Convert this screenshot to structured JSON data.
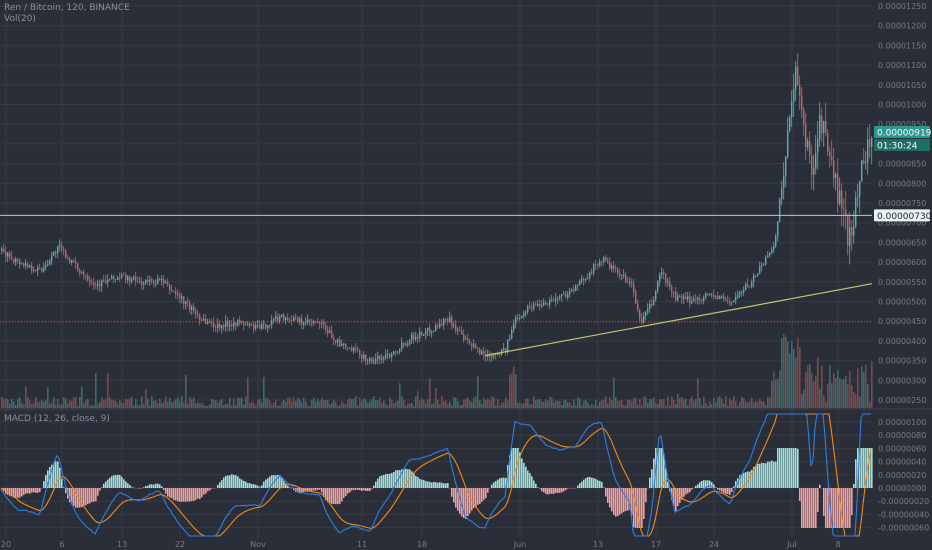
{
  "header": {
    "title": "Ren / Bitcoin, 120, BINANCE",
    "volume_label": "Vol(20)",
    "macd_label": "MACD (12, 26, close, 9)"
  },
  "price_tags": {
    "last_price": "0.00000919",
    "countdown": "01:30:24",
    "line_price": "0.00000730"
  },
  "colors": {
    "background": "#2a2e39",
    "grid": "#363a45",
    "up": "#4fb8ad",
    "down": "#d0625b",
    "vol_up": "#3f6b6a",
    "vol_down": "#7a4a4c",
    "trendline": "#c3c46a",
    "hline_support": "#9fd7d3",
    "hline_dotted": "#c0504d",
    "macd_line": "#2f7fe0",
    "signal_line": "#f08a1d",
    "tag_bg": "#2b9a8e"
  },
  "chart_data": {
    "type": "candlestick",
    "title": "Ren / Bitcoin, 120, BINANCE",
    "x_ticks": [
      "20",
      "6",
      "13",
      "22",
      "Nov",
      "11",
      "18",
      "Jun",
      "13",
      "17",
      "24",
      "Jul",
      "8"
    ],
    "y_ticks": [
      "0.00001250",
      "0.00001200",
      "0.00001150",
      "0.00001100",
      "0.00001050",
      "0.00001000",
      "0.00000950",
      "0.00000900",
      "0.00000850",
      "0.00000800",
      "0.00000750",
      "0.00000700",
      "0.00000650",
      "0.00000600",
      "0.00000550",
      "0.00000500",
      "0.00000450",
      "0.00000400",
      "0.00000350",
      "0.00000300",
      "0.00000250"
    ],
    "ylim": [
      2.5e-06,
      1.26e-05
    ],
    "price_path": [
      [
        0,
        6.4e-06
      ],
      [
        20,
        6.1e-06
      ],
      [
        40,
        5.9e-06
      ],
      [
        58,
        6.5e-06
      ],
      [
        75,
        6e-06
      ],
      [
        95,
        5.55e-06
      ],
      [
        120,
        5.75e-06
      ],
      [
        140,
        5.6e-06
      ],
      [
        160,
        5.65e-06
      ],
      [
        180,
        5.2e-06
      ],
      [
        200,
        4.7e-06
      ],
      [
        215,
        4.5e-06
      ],
      [
        235,
        4.6e-06
      ],
      [
        260,
        4.45e-06
      ],
      [
        280,
        4.75e-06
      ],
      [
        300,
        4.6e-06
      ],
      [
        320,
        4.55e-06
      ],
      [
        340,
        4e-06
      ],
      [
        355,
        3.85e-06
      ],
      [
        370,
        3.6e-06
      ],
      [
        390,
        3.8e-06
      ],
      [
        410,
        4.2e-06
      ],
      [
        430,
        4.4e-06
      ],
      [
        448,
        4.7e-06
      ],
      [
        465,
        4.1e-06
      ],
      [
        485,
        3.75e-06
      ],
      [
        505,
        3.9e-06
      ],
      [
        515,
        4.7e-06
      ],
      [
        530,
        5e-06
      ],
      [
        545,
        5.1e-06
      ],
      [
        560,
        5.25e-06
      ],
      [
        575,
        5.45e-06
      ],
      [
        590,
        5.9e-06
      ],
      [
        602,
        6.2e-06
      ],
      [
        615,
        5.85e-06
      ],
      [
        630,
        5.6e-06
      ],
      [
        640,
        4.6e-06
      ],
      [
        652,
        5.1e-06
      ],
      [
        660,
        5.9e-06
      ],
      [
        675,
        5.2e-06
      ],
      [
        690,
        5.15e-06
      ],
      [
        710,
        5.3e-06
      ],
      [
        730,
        5.1e-06
      ],
      [
        750,
        5.6e-06
      ],
      [
        765,
        6.2e-06
      ],
      [
        775,
        6.7e-06
      ],
      [
        785,
        9e-06
      ],
      [
        795,
        1.08e-05
      ],
      [
        805,
        9.2e-06
      ],
      [
        812,
        8.5e-06
      ],
      [
        820,
        9.8e-06
      ],
      [
        830,
        8.6e-06
      ],
      [
        840,
        7.6e-06
      ],
      [
        848,
        6.7e-06
      ],
      [
        856,
        7.6e-06
      ],
      [
        862,
        8.8e-06
      ],
      [
        870,
        9.19e-06
      ]
    ],
    "support_line": 7.3e-06,
    "dotted_line": 4.6e-06,
    "trendline": [
      [
        485,
        3.75e-06
      ],
      [
        872,
        5.57e-06
      ]
    ]
  }
}
